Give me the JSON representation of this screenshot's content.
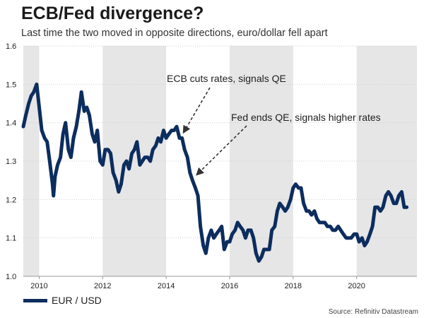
{
  "header": {
    "title": "ECB/Fed divergence?",
    "subtitle": "Last time the two moved in opposite directions, euro/dollar fell apart"
  },
  "legend": {
    "label": "EUR / USD"
  },
  "source": "Source: Refinitiv Datastream",
  "colors": {
    "line": "#0c2d5e",
    "shade": "#e6e6e6",
    "grid": "#cfcfcf",
    "arrow": "#333333"
  },
  "chart_data": {
    "type": "line",
    "xlim": [
      2009.5,
      2021.9
    ],
    "ylim": [
      1.0,
      1.6
    ],
    "x_ticks": [
      2010,
      2012,
      2014,
      2016,
      2018,
      2020
    ],
    "x_tick_labels": [
      "2010",
      "2012",
      "2014",
      "2016",
      "2018",
      "2020"
    ],
    "y_ticks": [
      1.0,
      1.1,
      1.2,
      1.3,
      1.4,
      1.5,
      1.6
    ],
    "y_tick_labels": [
      "1.0",
      "1.1",
      "1.2",
      "1.3",
      "1.4",
      "1.5",
      "1.6"
    ],
    "shaded_years": [
      [
        2009.5,
        2010
      ],
      [
        2012,
        2014
      ],
      [
        2016,
        2018
      ],
      [
        2020,
        2021.9
      ]
    ],
    "series": [
      {
        "name": "EUR / USD",
        "points": [
          [
            2009.5,
            1.39
          ],
          [
            2009.58,
            1.42
          ],
          [
            2009.67,
            1.45
          ],
          [
            2009.75,
            1.47
          ],
          [
            2009.83,
            1.48
          ],
          [
            2009.92,
            1.5
          ],
          [
            2010.0,
            1.44
          ],
          [
            2010.08,
            1.38
          ],
          [
            2010.17,
            1.36
          ],
          [
            2010.25,
            1.35
          ],
          [
            2010.33,
            1.3
          ],
          [
            2010.42,
            1.24
          ],
          [
            2010.45,
            1.21
          ],
          [
            2010.5,
            1.26
          ],
          [
            2010.58,
            1.29
          ],
          [
            2010.67,
            1.31
          ],
          [
            2010.75,
            1.37
          ],
          [
            2010.83,
            1.4
          ],
          [
            2010.92,
            1.33
          ],
          [
            2011.0,
            1.31
          ],
          [
            2011.08,
            1.36
          ],
          [
            2011.17,
            1.39
          ],
          [
            2011.25,
            1.43
          ],
          [
            2011.33,
            1.48
          ],
          [
            2011.42,
            1.43
          ],
          [
            2011.5,
            1.44
          ],
          [
            2011.58,
            1.42
          ],
          [
            2011.67,
            1.37
          ],
          [
            2011.75,
            1.35
          ],
          [
            2011.83,
            1.38
          ],
          [
            2011.92,
            1.3
          ],
          [
            2012.0,
            1.29
          ],
          [
            2012.08,
            1.33
          ],
          [
            2012.17,
            1.33
          ],
          [
            2012.25,
            1.32
          ],
          [
            2012.33,
            1.27
          ],
          [
            2012.42,
            1.25
          ],
          [
            2012.5,
            1.22
          ],
          [
            2012.58,
            1.24
          ],
          [
            2012.67,
            1.29
          ],
          [
            2012.75,
            1.3
          ],
          [
            2012.83,
            1.28
          ],
          [
            2012.92,
            1.32
          ],
          [
            2013.0,
            1.33
          ],
          [
            2013.08,
            1.35
          ],
          [
            2013.17,
            1.29
          ],
          [
            2013.25,
            1.3
          ],
          [
            2013.33,
            1.31
          ],
          [
            2013.42,
            1.31
          ],
          [
            2013.5,
            1.3
          ],
          [
            2013.58,
            1.33
          ],
          [
            2013.67,
            1.34
          ],
          [
            2013.75,
            1.36
          ],
          [
            2013.83,
            1.35
          ],
          [
            2013.92,
            1.38
          ],
          [
            2014.0,
            1.36
          ],
          [
            2014.08,
            1.37
          ],
          [
            2014.17,
            1.38
          ],
          [
            2014.25,
            1.38
          ],
          [
            2014.33,
            1.39
          ],
          [
            2014.42,
            1.36
          ],
          [
            2014.5,
            1.36
          ],
          [
            2014.58,
            1.33
          ],
          [
            2014.67,
            1.31
          ],
          [
            2014.75,
            1.27
          ],
          [
            2014.83,
            1.25
          ],
          [
            2014.92,
            1.23
          ],
          [
            2015.0,
            1.21
          ],
          [
            2015.08,
            1.13
          ],
          [
            2015.17,
            1.08
          ],
          [
            2015.25,
            1.06
          ],
          [
            2015.33,
            1.1
          ],
          [
            2015.42,
            1.12
          ],
          [
            2015.5,
            1.1
          ],
          [
            2015.58,
            1.11
          ],
          [
            2015.67,
            1.12
          ],
          [
            2015.75,
            1.13
          ],
          [
            2015.83,
            1.07
          ],
          [
            2015.92,
            1.09
          ],
          [
            2016.0,
            1.09
          ],
          [
            2016.08,
            1.11
          ],
          [
            2016.17,
            1.12
          ],
          [
            2016.25,
            1.14
          ],
          [
            2016.33,
            1.13
          ],
          [
            2016.42,
            1.12
          ],
          [
            2016.5,
            1.1
          ],
          [
            2016.58,
            1.12
          ],
          [
            2016.67,
            1.12
          ],
          [
            2016.75,
            1.1
          ],
          [
            2016.83,
            1.06
          ],
          [
            2016.92,
            1.04
          ],
          [
            2017.0,
            1.05
          ],
          [
            2017.08,
            1.07
          ],
          [
            2017.17,
            1.07
          ],
          [
            2017.25,
            1.07
          ],
          [
            2017.33,
            1.12
          ],
          [
            2017.42,
            1.13
          ],
          [
            2017.5,
            1.17
          ],
          [
            2017.58,
            1.19
          ],
          [
            2017.67,
            1.18
          ],
          [
            2017.75,
            1.17
          ],
          [
            2017.83,
            1.18
          ],
          [
            2017.92,
            1.2
          ],
          [
            2018.0,
            1.23
          ],
          [
            2018.08,
            1.24
          ],
          [
            2018.17,
            1.23
          ],
          [
            2018.25,
            1.23
          ],
          [
            2018.33,
            1.19
          ],
          [
            2018.42,
            1.17
          ],
          [
            2018.5,
            1.17
          ],
          [
            2018.58,
            1.16
          ],
          [
            2018.67,
            1.17
          ],
          [
            2018.75,
            1.15
          ],
          [
            2018.83,
            1.14
          ],
          [
            2018.92,
            1.14
          ],
          [
            2019.0,
            1.14
          ],
          [
            2019.08,
            1.13
          ],
          [
            2019.17,
            1.13
          ],
          [
            2019.25,
            1.12
          ],
          [
            2019.33,
            1.12
          ],
          [
            2019.42,
            1.13
          ],
          [
            2019.5,
            1.12
          ],
          [
            2019.58,
            1.11
          ],
          [
            2019.67,
            1.1
          ],
          [
            2019.75,
            1.1
          ],
          [
            2019.83,
            1.1
          ],
          [
            2019.92,
            1.11
          ],
          [
            2020.0,
            1.11
          ],
          [
            2020.08,
            1.09
          ],
          [
            2020.17,
            1.1
          ],
          [
            2020.25,
            1.08
          ],
          [
            2020.33,
            1.09
          ],
          [
            2020.42,
            1.11
          ],
          [
            2020.5,
            1.13
          ],
          [
            2020.58,
            1.18
          ],
          [
            2020.67,
            1.18
          ],
          [
            2020.75,
            1.17
          ],
          [
            2020.83,
            1.18
          ],
          [
            2020.92,
            1.21
          ],
          [
            2021.0,
            1.22
          ],
          [
            2021.08,
            1.21
          ],
          [
            2021.17,
            1.19
          ],
          [
            2021.25,
            1.19
          ],
          [
            2021.33,
            1.21
          ],
          [
            2021.42,
            1.22
          ],
          [
            2021.5,
            1.18
          ],
          [
            2021.58,
            1.18
          ]
        ]
      }
    ],
    "annotations": [
      {
        "text": "ECB cuts rates, signals QE",
        "target": [
          2014.55,
          1.375
        ]
      },
      {
        "text": "Fed ends QE, signals higher rates",
        "target": [
          2014.97,
          1.265
        ]
      }
    ]
  }
}
